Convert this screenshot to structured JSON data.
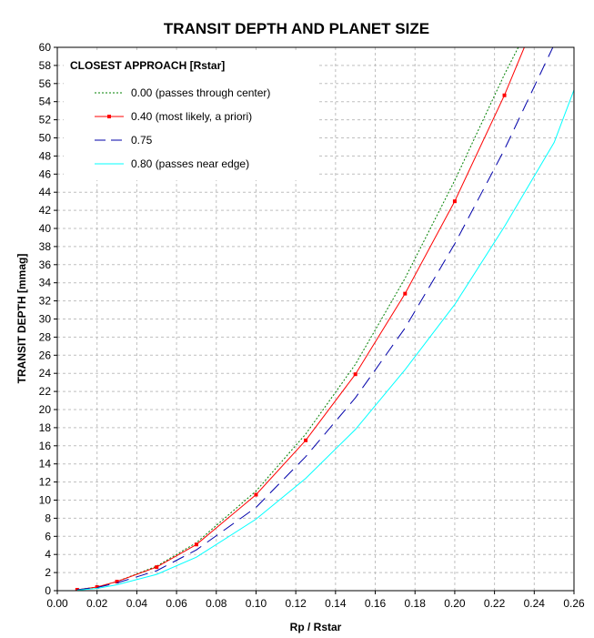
{
  "chart_data": {
    "type": "line",
    "title": "TRANSIT DEPTH AND PLANET SIZE",
    "xlabel": "Rp / Rstar",
    "ylabel": "TRANSIT DEPTH  [mmag]",
    "xlim": [
      0,
      0.26
    ],
    "ylim": [
      0,
      60
    ],
    "x_ticks": [
      "0.00",
      "0.02",
      "0.04",
      "0.06",
      "0.08",
      "0.10",
      "0.12",
      "0.14",
      "0.16",
      "0.18",
      "0.20",
      "0.22",
      "0.24",
      "0.26"
    ],
    "y_ticks": [
      "0",
      "2",
      "4",
      "6",
      "8",
      "10",
      "12",
      "14",
      "16",
      "18",
      "20",
      "22",
      "24",
      "26",
      "28",
      "30",
      "32",
      "34",
      "36",
      "38",
      "40",
      "42",
      "44",
      "46",
      "48",
      "50",
      "52",
      "54",
      "56",
      "58",
      "60"
    ],
    "grid": true,
    "legend_title": "CLOSEST APPROACH [Rstar]",
    "legend_position": "top-left",
    "series": [
      {
        "name": "0.00 (passes through center)",
        "color": "#008000",
        "style": "dotted",
        "x": [
          0.01,
          0.02,
          0.03,
          0.05,
          0.07,
          0.1,
          0.125,
          0.15,
          0.175,
          0.2,
          0.225,
          0.232
        ],
        "y": [
          0.1,
          0.4,
          1.0,
          2.7,
          5.3,
          11.0,
          17.3,
          25.0,
          34.5,
          45.3,
          57.0,
          60.0
        ]
      },
      {
        "name": "0.40 (most likely, a priori)",
        "color": "#ff0000",
        "style": "solid-marker",
        "x": [
          0.01,
          0.02,
          0.03,
          0.05,
          0.07,
          0.1,
          0.125,
          0.15,
          0.175,
          0.2,
          0.225,
          0.235
        ],
        "y": [
          0.1,
          0.4,
          1.0,
          2.6,
          5.1,
          10.6,
          16.6,
          23.9,
          32.8,
          43.0,
          54.7,
          60.0
        ]
      },
      {
        "name": "0.75",
        "color": "#0000aa",
        "style": "dashed",
        "x": [
          0.01,
          0.02,
          0.03,
          0.05,
          0.07,
          0.1,
          0.125,
          0.15,
          0.175,
          0.2,
          0.225,
          0.25
        ],
        "y": [
          0.1,
          0.35,
          0.85,
          2.2,
          4.5,
          9.2,
          14.8,
          21.3,
          29.0,
          38.3,
          48.7,
          60.3
        ]
      },
      {
        "name": "0.80 (passes near edge)",
        "color": "#00ffff",
        "style": "solid",
        "x": [
          0.01,
          0.02,
          0.03,
          0.05,
          0.07,
          0.1,
          0.125,
          0.15,
          0.175,
          0.2,
          0.225,
          0.25,
          0.26
        ],
        "y": [
          0.05,
          0.25,
          0.65,
          1.8,
          3.7,
          7.9,
          12.4,
          17.8,
          24.4,
          31.6,
          40.2,
          49.5,
          55.3
        ]
      }
    ]
  }
}
